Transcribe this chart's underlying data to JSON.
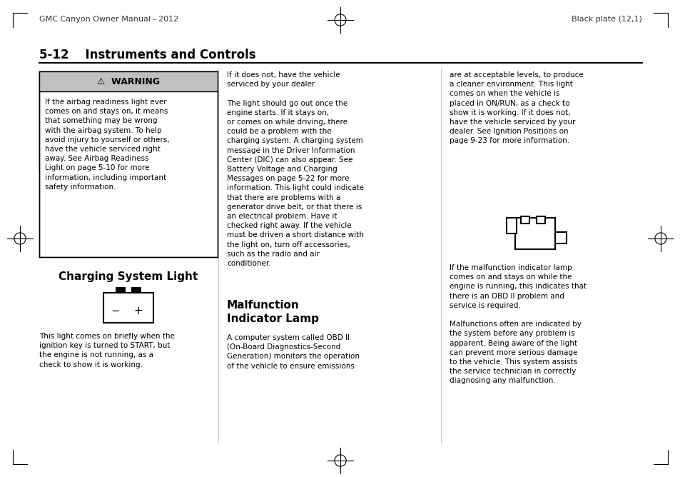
{
  "page_bg": "#ffffff",
  "header_left": "GMC Canyon Owner Manual - 2012",
  "header_right": "Black plate (12,1)",
  "section_title": "5-12    Instruments and Controls",
  "warning_header": "⚠  WARNING",
  "warning_header_bg": "#c8c8c8",
  "warning_text": "If the airbag readiness light ever\ncomes on and stays on, it means\nthat something may be wrong\nwith the airbag system. To help\navoid injury to yourself or others,\nhave the vehicle serviced right\naway. See Airbag Readiness\nLight on page 5-10 for more\ninformation, including important\nsafety information.",
  "charging_title": "Charging System Light",
  "charging_body": "This light comes on briefly when the\nignition key is turned to START, but\nthe engine is not running, as a\ncheck to show it is working.",
  "col2_text1": "If it does not, have the vehicle\nserviced by your dealer.\n\nThe light should go out once the\nengine starts. If it stays on,\nor comes on while driving, there\ncould be a problem with the\ncharging system. A charging system\nmessage in the Driver Information\nCenter (DIC) can also appear. See\nBattery Voltage and Charging\nMessages on page 5-22 for more\ninformation. This light could indicate\nthat there are problems with a\ngenerator drive belt, or that there is\nan electrical problem. Have it\nchecked right away. If the vehicle\nmust be driven a short distance with\nthe light on, turn off accessories,\nsuch as the radio and air\nconditioner.",
  "malfunction_title": "Malfunction\nIndicator Lamp",
  "malfunction_text": "A computer system called OBD II\n(On-Board Diagnostics-Second\nGeneration) monitors the operation\nof the vehicle to ensure emissions",
  "col3_text1": "are at acceptable levels, to produce\na cleaner environment. This light\ncomes on when the vehicle is\nplaced in ON/RUN, as a check to\nshow it is working. If it does not,\nhave the vehicle serviced by your\ndealer. See Ignition Positions on\npage 9-23 for more information.",
  "col3_text2": "If the malfunction indicator lamp\ncomes on and stays on while the\nengine is running, this indicates that\nthere is an OBD II problem and\nservice is required.\n\nMalfunctions often are indicated by\nthe system before any problem is\napparent. Being aware of the light\ncan prevent more serious damage\nto the vehicle. This system assists\nthe service technician in correctly\ndiagnosing any malfunction.",
  "crosshair_color": "#000000",
  "text_color": "#000000",
  "border_color": "#000000",
  "italic_parts_col2": [
    "Battery Voltage and Charging\nMessages on page 5-22"
  ],
  "italic_parts_col3": [
    "Ignition Positions on\npage 9-23"
  ]
}
